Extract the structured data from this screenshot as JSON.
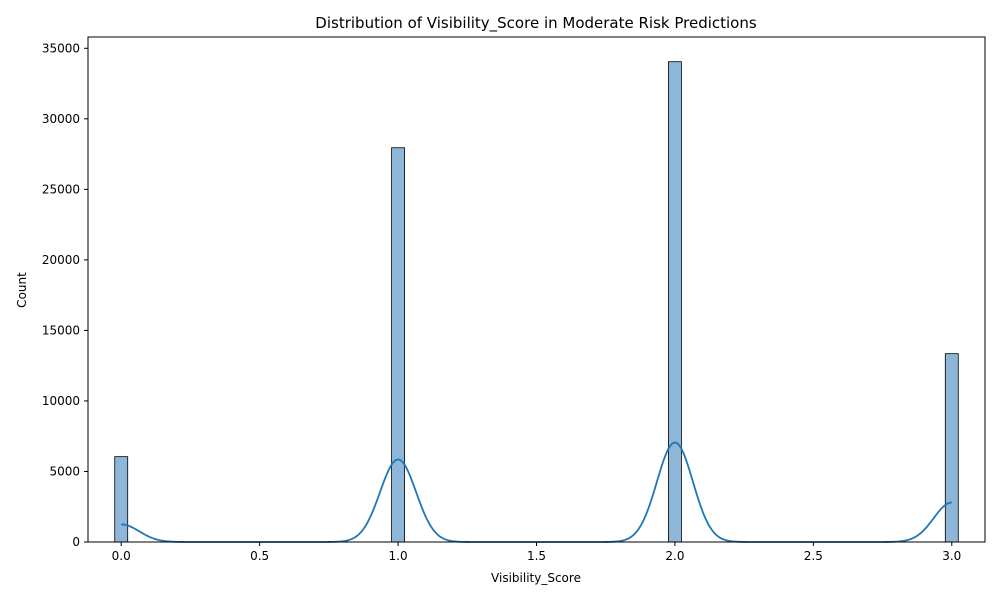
{
  "chart_data": {
    "type": "bar",
    "title": "Distribution of Visibility_Score in Moderate Risk Predictions",
    "xlabel": "Visibility_Score",
    "ylabel": "Count",
    "xlim": [
      -0.12,
      3.12
    ],
    "ylim": [
      0,
      35800
    ],
    "xticks": [
      0.0,
      0.5,
      1.0,
      1.5,
      2.0,
      2.5,
      3.0
    ],
    "xtick_labels": [
      "0.0",
      "0.5",
      "1.0",
      "1.5",
      "2.0",
      "2.5",
      "3.0"
    ],
    "yticks": [
      0,
      5000,
      10000,
      15000,
      20000,
      25000,
      30000,
      35000
    ],
    "ytick_labels": [
      "0",
      "5000",
      "10000",
      "15000",
      "20000",
      "25000",
      "30000",
      "35000"
    ],
    "bin_width": 0.0469,
    "bars": [
      {
        "x": 0.0,
        "count": 6050
      },
      {
        "x": 1.0,
        "count": 27950
      },
      {
        "x": 2.0,
        "count": 34050
      },
      {
        "x": 3.0,
        "count": 13350
      }
    ],
    "kde": {
      "x_range": [
        0.0,
        3.0
      ],
      "peaks": [
        {
          "center": 0.0,
          "height": 1250,
          "sigma": 0.065
        },
        {
          "center": 1.0,
          "height": 5850,
          "sigma": 0.065
        },
        {
          "center": 2.0,
          "height": 7050,
          "sigma": 0.065
        },
        {
          "center": 3.0,
          "height": 2800,
          "sigma": 0.065
        }
      ]
    },
    "grid": false,
    "colors": {
      "bar_fill": "#8db6d8",
      "bar_edge": "#000000",
      "kde_line": "#1f77b4"
    }
  }
}
